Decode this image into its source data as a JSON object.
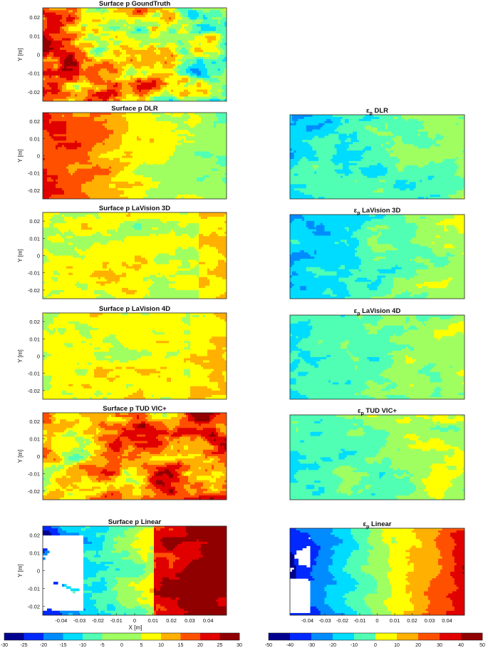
{
  "figure": {
    "xlabel": "X [m]",
    "ylabel": "Y [m]"
  },
  "chart_data": [
    {
      "type": "heatmap",
      "title": "Surface p GoundTruth",
      "column": "left",
      "field": "gt",
      "ylim": [
        -0.025,
        0.025
      ],
      "yticks": [
        "0.02",
        "0.01",
        "0",
        "-0.01",
        "-0.02"
      ]
    },
    {
      "type": "heatmap",
      "title": "Surface p DLR",
      "column": "left",
      "field": "dlr",
      "ylim": [
        -0.025,
        0.025
      ],
      "yticks": [
        "0.02",
        "0.01",
        "0",
        "-0.01",
        "-0.02"
      ]
    },
    {
      "type": "heatmap",
      "title": "ε_p DLR",
      "title_main": "DLR",
      "title_sym": "ε",
      "title_sub": "p",
      "column": "right",
      "field": "err_dlr"
    },
    {
      "type": "heatmap",
      "title": "Surface p LaVision 3D",
      "column": "left",
      "field": "lv3d",
      "ylim": [
        -0.025,
        0.025
      ],
      "yticks": [
        "0.02",
        "0.01",
        "0",
        "-0.01",
        "-0.02"
      ]
    },
    {
      "type": "heatmap",
      "title": "ε_p LaVision 3D",
      "title_main": "LaVision 3D",
      "title_sym": "ε",
      "title_sub": "p",
      "column": "right",
      "field": "err_lv3d"
    },
    {
      "type": "heatmap",
      "title": "Surface p LaVision 4D",
      "column": "left",
      "field": "lv4d",
      "ylim": [
        -0.025,
        0.025
      ],
      "yticks": [
        "0.02",
        "0.01",
        "0",
        "-0.01",
        "-0.02"
      ]
    },
    {
      "type": "heatmap",
      "title": "ε_p LaVision 4D",
      "title_main": "LaVision 4D",
      "title_sym": "ε",
      "title_sub": "p",
      "column": "right",
      "field": "err_lv4d"
    },
    {
      "type": "heatmap",
      "title": "Surface p TUD VIC+",
      "column": "left",
      "field": "tud",
      "ylim": [
        -0.025,
        0.025
      ],
      "yticks": [
        "0.02",
        "0.01",
        "0",
        "-0.01",
        "-0.02"
      ]
    },
    {
      "type": "heatmap",
      "title": "ε_p TUD VIC+",
      "title_main": "TUD VIC+",
      "title_sym": "ε",
      "title_sub": "p",
      "column": "right",
      "field": "err_tud"
    },
    {
      "type": "heatmap",
      "title": "Surface p Linear",
      "column": "left",
      "field": "linear",
      "ylim": [
        -0.025,
        0.025
      ],
      "yticks": [
        "0.02",
        "0.01",
        "0",
        "-0.01",
        "-0.02"
      ],
      "xlim": [
        -0.05,
        0.05
      ],
      "xticks": [
        "-0.04",
        "-0.03",
        "-0.02",
        "-0.01",
        "0",
        "0.01",
        "0.02",
        "0.03",
        "0.04"
      ]
    },
    {
      "type": "heatmap",
      "title": "ε_p Linear",
      "title_main": "Linear",
      "title_sym": "ε",
      "title_sub": "p",
      "column": "right",
      "field": "err_linear",
      "xlim": [
        -0.05,
        0.05
      ],
      "xticks": [
        "-0.04",
        "-0.03",
        "-0.02",
        "-0.01",
        "0",
        "0.01",
        "0.02",
        "0.03",
        "0.04"
      ]
    }
  ],
  "colorbars": [
    {
      "column": "left",
      "min": -30,
      "max": 30,
      "labels": [
        "-30",
        "-25",
        "-20",
        "-15",
        "-10",
        "-5",
        "0",
        "5",
        "10",
        "15",
        "20",
        "25",
        "30"
      ]
    },
    {
      "column": "right",
      "min": -50,
      "max": 50,
      "labels": [
        "-50",
        "-40",
        "-30",
        "-20",
        "-10",
        "0",
        "10",
        "20",
        "30",
        "40",
        "50"
      ]
    }
  ],
  "colors": {
    "levels": [
      "#00008f",
      "#0028ff",
      "#008cff",
      "#00dcff",
      "#50ffb4",
      "#a0ff60",
      "#ffff00",
      "#ffb000",
      "#ff5000",
      "#e00000",
      "#900000"
    ]
  }
}
